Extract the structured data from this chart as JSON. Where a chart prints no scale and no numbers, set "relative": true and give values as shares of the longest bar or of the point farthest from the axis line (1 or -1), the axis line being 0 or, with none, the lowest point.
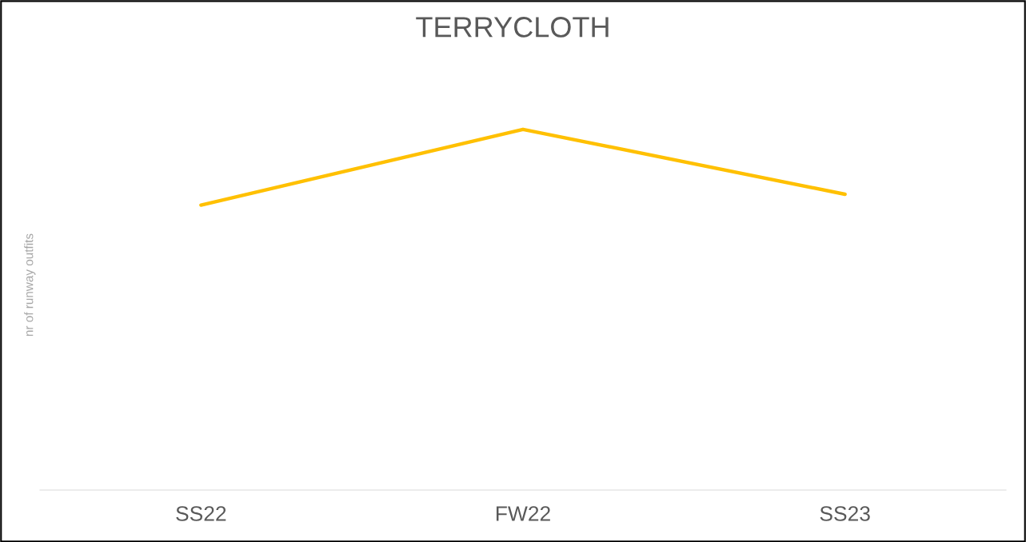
{
  "chart_data": {
    "type": "line",
    "title": "TERRYCLOTH",
    "ylabel": "nr of runway outfits",
    "categories": [
      "SS22",
      "FW22",
      "SS23"
    ],
    "series": [
      {
        "color": "#ffc000",
        "values": [
          0.79,
          1,
          0.82
        ]
      }
    ],
    "relative": true,
    "grid": false,
    "legend": false,
    "marker": "none",
    "line_style": "solid"
  }
}
